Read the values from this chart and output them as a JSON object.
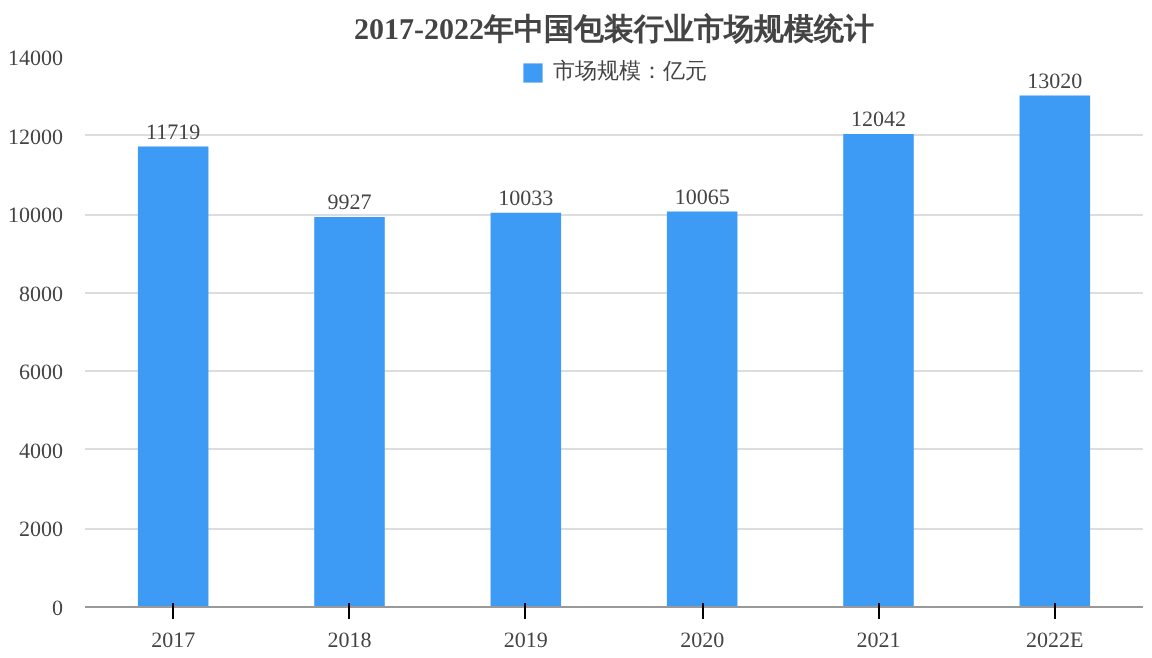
{
  "chart_data": {
    "type": "bar",
    "title": "2017-2022年中国包装行业市场规模统计",
    "categories": [
      "2017",
      "2018",
      "2019",
      "2020",
      "2021",
      "2022E"
    ],
    "series": [
      {
        "name": "市场规模：亿元",
        "color": "#3d9bf5",
        "values": [
          11719,
          9927,
          10033,
          10065,
          12042,
          13020
        ]
      }
    ],
    "ylim": [
      0,
      14000
    ],
    "yticks": [
      0,
      2000,
      4000,
      6000,
      8000,
      10000,
      12000,
      14000
    ],
    "grid": "y",
    "legend": "top",
    "data_labels": true
  }
}
